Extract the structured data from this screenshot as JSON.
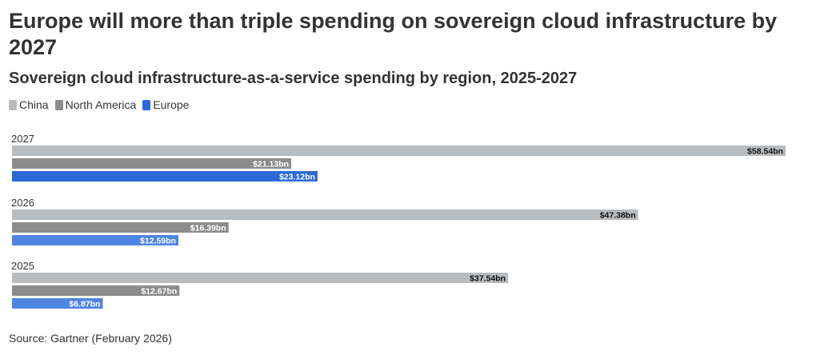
{
  "header": {
    "title": "Europe will more than triple spending on sovereign cloud infrastructure by 2027",
    "subtitle": "Sovereign cloud infrastructure-as-a-service spending by region, 2025-2027"
  },
  "legend": [
    {
      "label": "China",
      "color": "#b9bcbf"
    },
    {
      "label": "North America",
      "color": "#8c8c8c"
    },
    {
      "label": "Europe",
      "color": "#2b69d6"
    }
  ],
  "colors": {
    "china": "#b9bcbf",
    "north_america": "#8c8c8c",
    "europe": "#2b69d6",
    "europe_light": "#4e84e2"
  },
  "chart_data": {
    "type": "bar",
    "orientation": "horizontal",
    "title": "Europe will more than triple spending on sovereign cloud infrastructure by 2027",
    "subtitle": "Sovereign cloud infrastructure-as-a-service spending by region, 2025-2027",
    "unit": "$bn",
    "categories": [
      "2027",
      "2026",
      "2025"
    ],
    "series": [
      {
        "name": "China",
        "values": [
          58.54,
          47.38,
          37.54
        ],
        "labels": [
          "$58.54bn",
          "$47.38bn",
          "$37.54bn"
        ]
      },
      {
        "name": "North America",
        "values": [
          21.13,
          16.39,
          12.67
        ],
        "labels": [
          "$21.13bn",
          "$16.39bn",
          "$12.67bn"
        ]
      },
      {
        "name": "Europe",
        "values": [
          23.12,
          12.59,
          6.87
        ],
        "labels": [
          "$23.12bn",
          "$12.59bn",
          "$6.87bn"
        ]
      }
    ],
    "xlim": [
      0,
      58.54
    ],
    "grid": false,
    "legend_position": "top-left"
  },
  "footer": {
    "source": "Source: Gartner (February 2026)"
  }
}
